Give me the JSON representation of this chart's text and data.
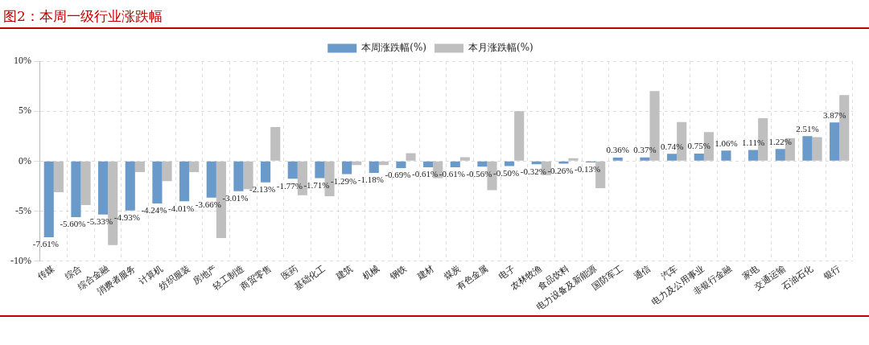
{
  "chart_data": {
    "type": "bar",
    "title": "图2：本周一级行业涨跌幅",
    "categories": [
      "传媒",
      "综合",
      "综合金融",
      "消费者服务",
      "计算机",
      "纺织服装",
      "房地产",
      "轻工制造",
      "商贸零售",
      "医药",
      "基础化工",
      "建筑",
      "机械",
      "钢铁",
      "建材",
      "煤炭",
      "有色金属",
      "电子",
      "农林牧渔",
      "食品饮料",
      "电力设备及新能源",
      "国防军工",
      "通信",
      "汽车",
      "电力及公用事业",
      "非银行金融",
      "家电",
      "交通运输",
      "石油石化",
      "银行"
    ],
    "series": [
      {
        "name": "本周涨跌幅(%)",
        "color": "#6a9ac9",
        "values": [
          -7.61,
          -5.6,
          -5.33,
          -4.93,
          -4.24,
          -4.01,
          -3.66,
          -3.01,
          -2.13,
          -1.77,
          -1.71,
          -1.29,
          -1.18,
          -0.69,
          -0.61,
          -0.61,
          -0.56,
          -0.5,
          -0.32,
          -0.26,
          -0.13,
          0.36,
          0.37,
          0.74,
          0.75,
          1.06,
          1.11,
          1.22,
          2.51,
          3.87
        ],
        "value_labels": [
          "-7.61%",
          "-5.60%",
          "-5.33%",
          "-4.93%",
          "-4.24%",
          "-4.01%",
          "-3.66%",
          "-3.01%",
          "-2.13%",
          "-1.77%",
          "-1.71%",
          "-1.29%",
          "-1.18%",
          "-0.69%",
          "-0.61%",
          "-0.61%",
          "-0.56%",
          "-0.50%",
          "-0.32%",
          "-0.26%",
          "-0.13%",
          "0.36%",
          "0.37%",
          "0.74%",
          "0.75%",
          "1.06%",
          "1.11%",
          "1.22%",
          "2.51%",
          "3.87%"
        ]
      },
      {
        "name": "本月涨跌幅(%)",
        "color": "#bfbfbf",
        "values": [
          -3.1,
          -4.4,
          -8.4,
          -1.1,
          -2.0,
          -1.1,
          -7.7,
          -2.8,
          3.4,
          -3.4,
          -3.5,
          -0.4,
          -0.4,
          0.8,
          -1.7,
          0.4,
          -2.9,
          5.0,
          -1.4,
          0.3,
          -2.7,
          null,
          7.0,
          3.9,
          2.9,
          null,
          4.3,
          2.3,
          2.4,
          6.6
        ]
      }
    ],
    "ylim": [
      -10,
      10
    ],
    "yticks": [
      {
        "value": -10,
        "label": "-10%"
      },
      {
        "value": -5,
        "label": "-5%"
      },
      {
        "value": 0,
        "label": "0%"
      },
      {
        "value": 5,
        "label": "5%"
      },
      {
        "value": 10,
        "label": "10%"
      }
    ],
    "grid": true,
    "legend": "top"
  }
}
